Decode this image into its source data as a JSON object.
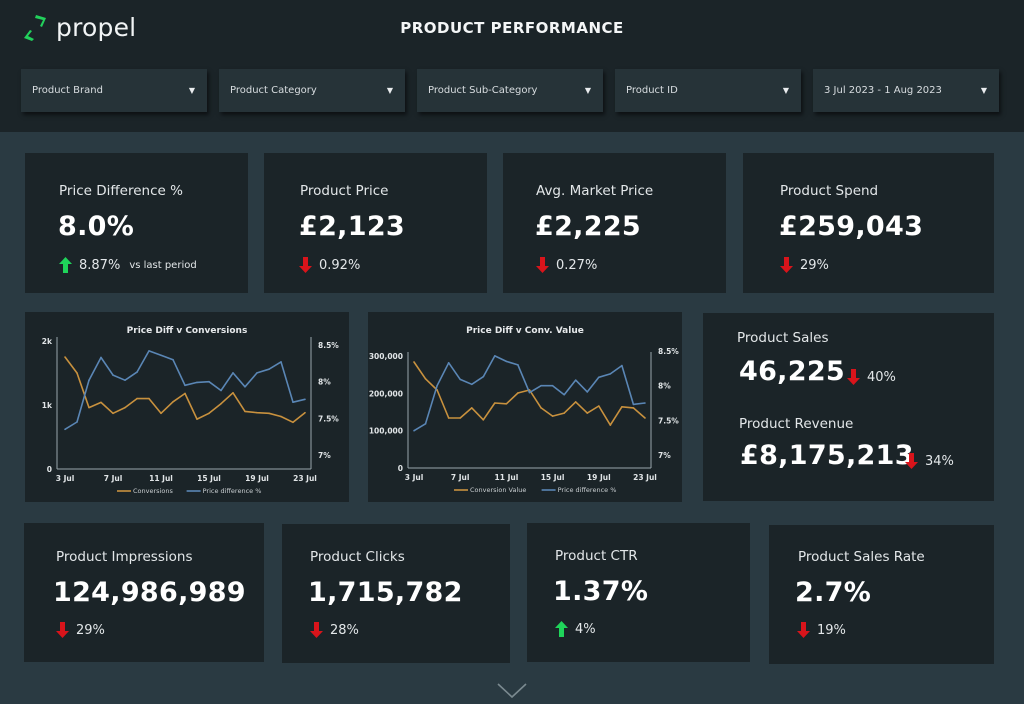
{
  "header": {
    "brand": "propel",
    "title": "PRODUCT PERFORMANCE"
  },
  "filters": [
    {
      "label": "Product Brand",
      "icon": "caret-down-icon"
    },
    {
      "label": "Product Category",
      "icon": "caret-down-icon"
    },
    {
      "label": "Product Sub-Category",
      "icon": "caret-down-icon"
    },
    {
      "label": "Product ID",
      "icon": "caret-down-icon"
    },
    {
      "label": "3 Jul 2023 - 1 Aug 2023",
      "icon": "caret-down-icon"
    }
  ],
  "colors": {
    "up": "#1fd45a",
    "down": "#d9141b",
    "conversions_line": "#c8913e",
    "price_diff_line": "#5a86b5",
    "brand_green": "#22d15c"
  },
  "kpis_top": [
    {
      "label": "Price Difference %",
      "value": "8.0%",
      "direction": "up",
      "delta": "8.87%",
      "note": "vs last period"
    },
    {
      "label": "Product Price",
      "value": "£2,123",
      "direction": "down",
      "delta": "0.92%"
    },
    {
      "label": "Avg. Market Price",
      "value": "£2,225",
      "direction": "down",
      "delta": "0.27%"
    },
    {
      "label": "Product Spend",
      "value": "£259,043",
      "direction": "down",
      "delta": "29%"
    }
  ],
  "sales_card": {
    "sales_label": "Product Sales",
    "sales_value": "46,225",
    "sales_direction": "down",
    "sales_delta": "40%",
    "revenue_label": "Product Revenue",
    "revenue_value": "£8,175,213",
    "revenue_direction": "down",
    "revenue_delta": "34%"
  },
  "kpis_bottom": [
    {
      "label": "Product Impressions",
      "value": "124,986,989",
      "direction": "down",
      "delta": "29%"
    },
    {
      "label": "Product Clicks",
      "value": "1,715,782",
      "direction": "down",
      "delta": "28%"
    },
    {
      "label": "Product CTR",
      "value": "1.37%",
      "direction": "up",
      "delta": "4%"
    },
    {
      "label": "Product Sales Rate",
      "value": "2.7%",
      "direction": "down",
      "delta": "19%"
    }
  ],
  "chart_data": [
    {
      "type": "line",
      "title": "Price Diff v Conversions",
      "x": [
        "3 Jul",
        "4 Jul",
        "5 Jul",
        "6 Jul",
        "7 Jul",
        "8 Jul",
        "9 Jul",
        "10 Jul",
        "11 Jul",
        "12 Jul",
        "13 Jul",
        "14 Jul",
        "15 Jul",
        "16 Jul",
        "17 Jul",
        "18 Jul",
        "19 Jul",
        "20 Jul",
        "21 Jul",
        "22 Jul",
        "23 Jul"
      ],
      "x_tick_labels": [
        "3 Jul",
        "7 Jul",
        "11 Jul",
        "15 Jul",
        "19 Jul",
        "23 Jul"
      ],
      "y_left": {
        "ticks": [
          "0",
          "1k",
          "2k"
        ],
        "range": [
          0,
          2000
        ]
      },
      "y_right": {
        "ticks": [
          "7%",
          "7.5%",
          "8%",
          "8.5%"
        ],
        "range": [
          7.0,
          8.5
        ]
      },
      "series": [
        {
          "name": "Conversions",
          "axis": "left",
          "color": "#c8913e",
          "values": [
            1750,
            1500,
            960,
            1040,
            870,
            960,
            1100,
            1100,
            870,
            1050,
            1180,
            780,
            870,
            1020,
            1190,
            900,
            880,
            870,
            820,
            730,
            880
          ]
        },
        {
          "name": "Price difference %",
          "axis": "right",
          "color": "#5a86b5",
          "values": [
            7.35,
            7.45,
            8.02,
            8.33,
            8.09,
            8.02,
            8.13,
            8.42,
            8.36,
            8.3,
            7.95,
            7.99,
            8.0,
            7.88,
            8.12,
            7.93,
            8.12,
            8.17,
            8.27,
            7.72,
            7.76
          ]
        }
      ],
      "legend": "bottom"
    },
    {
      "type": "line",
      "title": "Price Diff v Conv. Value",
      "x": [
        "3 Jul",
        "4 Jul",
        "5 Jul",
        "6 Jul",
        "7 Jul",
        "8 Jul",
        "9 Jul",
        "10 Jul",
        "11 Jul",
        "12 Jul",
        "13 Jul",
        "14 Jul",
        "15 Jul",
        "16 Jul",
        "17 Jul",
        "18 Jul",
        "19 Jul",
        "20 Jul",
        "21 Jul",
        "22 Jul",
        "23 Jul"
      ],
      "x_tick_labels": [
        "3 Jul",
        "7 Jul",
        "11 Jul",
        "15 Jul",
        "19 Jul",
        "23 Jul"
      ],
      "y_left": {
        "ticks": [
          "0",
          "100,000",
          "200,000",
          "300,000"
        ],
        "range": [
          0,
          300000
        ]
      },
      "y_right": {
        "ticks": [
          "7%",
          "7.5%",
          "8%",
          "8.5%"
        ],
        "range": [
          7.0,
          8.5
        ]
      },
      "series": [
        {
          "name": "Conversion Value",
          "axis": "left",
          "color": "#c8913e",
          "values": [
            284000,
            239000,
            209000,
            134000,
            134000,
            161000,
            129000,
            174000,
            172000,
            201000,
            209000,
            161000,
            139000,
            147000,
            177000,
            147000,
            166000,
            115000,
            164000,
            161000,
            134000
          ]
        },
        {
          "name": "Price difference %",
          "axis": "right",
          "color": "#5a86b5",
          "values": [
            7.35,
            7.45,
            8.0,
            8.33,
            8.09,
            8.02,
            8.13,
            8.43,
            8.35,
            8.3,
            7.9,
            8.0,
            8.0,
            7.87,
            8.08,
            7.91,
            8.12,
            8.17,
            8.29,
            7.73,
            7.75
          ]
        }
      ],
      "legend": "bottom"
    }
  ]
}
